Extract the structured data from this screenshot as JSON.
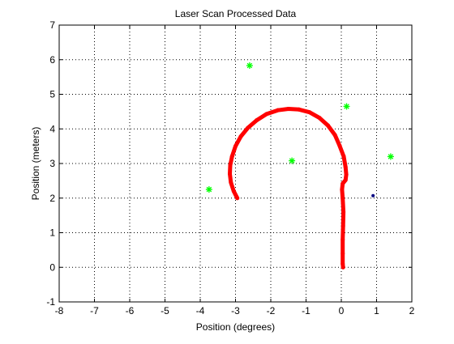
{
  "chart_data": {
    "type": "scatter",
    "title": "Laser Scan Processed Data",
    "xlabel": "Position (degrees)",
    "ylabel": "Position (meters)",
    "xlim": [
      -8,
      2
    ],
    "ylim": [
      -1,
      7
    ],
    "xticks": [
      -8,
      -7,
      -6,
      -5,
      -4,
      -3,
      -2,
      -1,
      0,
      1,
      2
    ],
    "yticks": [
      -1,
      0,
      1,
      2,
      3,
      4,
      5,
      6,
      7
    ],
    "grid": true,
    "grid_style": "dotted",
    "colors": {
      "path": "#ff0000",
      "landmarks": "#00ff00",
      "robot": "#000080",
      "grid": "#000000",
      "background": "#ffffff"
    },
    "series": [
      {
        "marker": "thick-line",
        "points": [
          [
            -2.95,
            2.0
          ],
          [
            -3.05,
            2.2
          ],
          [
            -3.13,
            2.45
          ],
          [
            -3.16,
            2.7
          ],
          [
            -3.15,
            2.95
          ],
          [
            -3.1,
            3.2
          ],
          [
            -3.0,
            3.5
          ],
          [
            -2.85,
            3.78
          ],
          [
            -2.65,
            4.03
          ],
          [
            -2.4,
            4.25
          ],
          [
            -2.12,
            4.43
          ],
          [
            -1.8,
            4.54
          ],
          [
            -1.5,
            4.58
          ],
          [
            -1.2,
            4.56
          ],
          [
            -0.9,
            4.48
          ],
          [
            -0.62,
            4.32
          ],
          [
            -0.38,
            4.1
          ],
          [
            -0.18,
            3.82
          ],
          [
            -0.05,
            3.52
          ],
          [
            0.07,
            3.2
          ],
          [
            0.12,
            2.9
          ],
          [
            0.14,
            2.68
          ],
          [
            0.12,
            2.52
          ],
          [
            0.04,
            2.42
          ],
          [
            0.02,
            2.25
          ],
          [
            0.04,
            2.0
          ],
          [
            0.06,
            1.6
          ],
          [
            0.05,
            1.2
          ],
          [
            0.04,
            0.8
          ],
          [
            0.04,
            0.4
          ],
          [
            0.04,
            0.1
          ],
          [
            0.05,
            0.0
          ]
        ]
      },
      {
        "marker": "asterisk",
        "points": [
          [
            -2.6,
            5.83
          ],
          [
            0.15,
            4.65
          ],
          [
            -1.4,
            3.08
          ],
          [
            1.4,
            3.2
          ],
          [
            -3.75,
            2.25
          ]
        ]
      },
      {
        "marker": "dot",
        "points": [
          [
            0.9,
            2.07
          ]
        ]
      }
    ]
  }
}
